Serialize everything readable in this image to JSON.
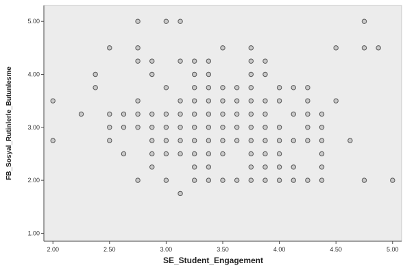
{
  "chart_data": {
    "type": "scatter",
    "xlabel": "SE_Student_Engagement",
    "ylabel": "FB_Sosyal_Rutinlerle_Butunlesme",
    "xlim": [
      1.92,
      5.08
    ],
    "ylim": [
      0.85,
      5.3
    ],
    "x_ticks": [
      "2.00",
      "2.50",
      "3.00",
      "3.50",
      "4.00",
      "4.50",
      "5.00"
    ],
    "y_ticks": [
      "1.00",
      "2.00",
      "3.00",
      "4.00",
      "5.00"
    ],
    "x_tick_values": [
      2.0,
      2.5,
      3.0,
      3.5,
      4.0,
      4.5,
      5.0
    ],
    "y_tick_values": [
      1.0,
      2.0,
      3.0,
      4.0,
      5.0
    ],
    "colors": {
      "plot_background": "#ececec",
      "marker_stroke": "#555555",
      "marker_fill": "#c9c9c9"
    },
    "grid": false,
    "points": [
      [
        2.75,
        5.0
      ],
      [
        3.0,
        5.0
      ],
      [
        3.125,
        5.0
      ],
      [
        4.75,
        5.0
      ],
      [
        2.5,
        4.5
      ],
      [
        2.75,
        4.5
      ],
      [
        3.5,
        4.5
      ],
      [
        3.75,
        4.5
      ],
      [
        4.5,
        4.5
      ],
      [
        4.75,
        4.5
      ],
      [
        4.875,
        4.5
      ],
      [
        2.75,
        4.25
      ],
      [
        2.875,
        4.25
      ],
      [
        3.125,
        4.25
      ],
      [
        3.25,
        4.25
      ],
      [
        3.375,
        4.25
      ],
      [
        3.75,
        4.25
      ],
      [
        3.875,
        4.25
      ],
      [
        2.375,
        4.0
      ],
      [
        2.875,
        4.0
      ],
      [
        3.25,
        4.0
      ],
      [
        3.375,
        4.0
      ],
      [
        3.75,
        4.0
      ],
      [
        3.875,
        4.0
      ],
      [
        2.375,
        3.75
      ],
      [
        3.0,
        3.75
      ],
      [
        3.25,
        3.75
      ],
      [
        3.375,
        3.75
      ],
      [
        3.5,
        3.75
      ],
      [
        3.625,
        3.75
      ],
      [
        3.75,
        3.75
      ],
      [
        4.0,
        3.75
      ],
      [
        4.125,
        3.75
      ],
      [
        4.25,
        3.75
      ],
      [
        2.0,
        3.5
      ],
      [
        2.75,
        3.5
      ],
      [
        3.125,
        3.5
      ],
      [
        3.25,
        3.5
      ],
      [
        3.375,
        3.5
      ],
      [
        3.5,
        3.5
      ],
      [
        3.625,
        3.5
      ],
      [
        3.75,
        3.5
      ],
      [
        3.875,
        3.5
      ],
      [
        4.0,
        3.5
      ],
      [
        4.25,
        3.5
      ],
      [
        4.5,
        3.5
      ],
      [
        2.25,
        3.25
      ],
      [
        2.5,
        3.25
      ],
      [
        2.625,
        3.25
      ],
      [
        2.75,
        3.25
      ],
      [
        2.875,
        3.25
      ],
      [
        3.0,
        3.25
      ],
      [
        3.125,
        3.25
      ],
      [
        3.25,
        3.25
      ],
      [
        3.375,
        3.25
      ],
      [
        3.5,
        3.25
      ],
      [
        3.625,
        3.25
      ],
      [
        3.75,
        3.25
      ],
      [
        3.875,
        3.25
      ],
      [
        4.125,
        3.25
      ],
      [
        4.25,
        3.25
      ],
      [
        4.375,
        3.25
      ],
      [
        2.5,
        3.0
      ],
      [
        2.625,
        3.0
      ],
      [
        2.75,
        3.0
      ],
      [
        2.875,
        3.0
      ],
      [
        3.0,
        3.0
      ],
      [
        3.125,
        3.0
      ],
      [
        3.25,
        3.0
      ],
      [
        3.375,
        3.0
      ],
      [
        3.5,
        3.0
      ],
      [
        3.625,
        3.0
      ],
      [
        3.75,
        3.0
      ],
      [
        3.875,
        3.0
      ],
      [
        4.0,
        3.0
      ],
      [
        4.25,
        3.0
      ],
      [
        4.375,
        3.0
      ],
      [
        2.0,
        2.75
      ],
      [
        2.5,
        2.75
      ],
      [
        2.875,
        2.75
      ],
      [
        3.0,
        2.75
      ],
      [
        3.125,
        2.75
      ],
      [
        3.25,
        2.75
      ],
      [
        3.375,
        2.75
      ],
      [
        3.5,
        2.75
      ],
      [
        3.625,
        2.75
      ],
      [
        3.75,
        2.75
      ],
      [
        3.875,
        2.75
      ],
      [
        4.0,
        2.75
      ],
      [
        4.125,
        2.75
      ],
      [
        4.25,
        2.75
      ],
      [
        4.375,
        2.75
      ],
      [
        4.625,
        2.75
      ],
      [
        2.625,
        2.5
      ],
      [
        2.875,
        2.5
      ],
      [
        3.0,
        2.5
      ],
      [
        3.125,
        2.5
      ],
      [
        3.25,
        2.5
      ],
      [
        3.375,
        2.5
      ],
      [
        3.5,
        2.5
      ],
      [
        3.75,
        2.5
      ],
      [
        3.875,
        2.5
      ],
      [
        4.0,
        2.5
      ],
      [
        4.375,
        2.5
      ],
      [
        2.875,
        2.25
      ],
      [
        3.25,
        2.25
      ],
      [
        3.375,
        2.25
      ],
      [
        3.75,
        2.25
      ],
      [
        3.875,
        2.25
      ],
      [
        4.0,
        2.25
      ],
      [
        4.125,
        2.25
      ],
      [
        4.375,
        2.25
      ],
      [
        2.75,
        2.0
      ],
      [
        3.0,
        2.0
      ],
      [
        3.25,
        2.0
      ],
      [
        3.375,
        2.0
      ],
      [
        3.5,
        2.0
      ],
      [
        3.625,
        2.0
      ],
      [
        3.75,
        2.0
      ],
      [
        3.875,
        2.0
      ],
      [
        4.0,
        2.0
      ],
      [
        4.125,
        2.0
      ],
      [
        4.25,
        2.0
      ],
      [
        4.375,
        2.0
      ],
      [
        4.75,
        2.0
      ],
      [
        5.0,
        2.0
      ],
      [
        3.125,
        1.75
      ]
    ]
  }
}
